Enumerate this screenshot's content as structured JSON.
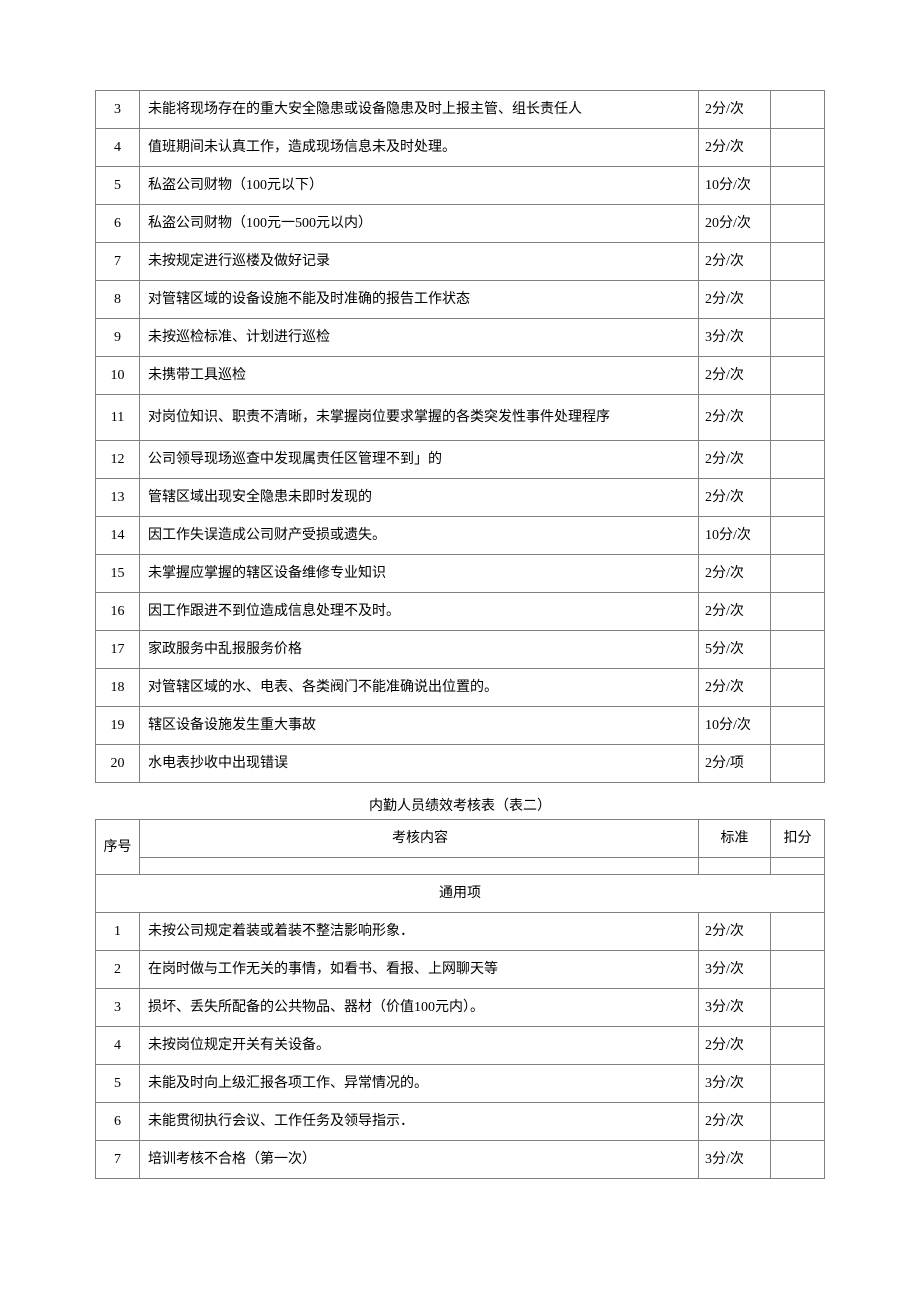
{
  "table1": {
    "rows": [
      {
        "num": "3",
        "content": "未能将现场存在的重大安全隐患或设备隐患及时上报主管、组长责任人",
        "std": "2分/次"
      },
      {
        "num": "4",
        "content": "值班期间未认真工作，造成现场信息未及时处理。",
        "std": "2分/次"
      },
      {
        "num": "5",
        "content": "私盗公司财物（100元以下）",
        "std": "10分/次"
      },
      {
        "num": "6",
        "content": "私盗公司财物（100元一500元以内）",
        "std": "20分/次"
      },
      {
        "num": "7",
        "content": "未按规定进行巡楼及做好记录",
        "std": "2分/次"
      },
      {
        "num": "8",
        "content": "对管辖区域的设备设施不能及时准确的报告工作状态",
        "std": "2分/次"
      },
      {
        "num": "9",
        "content": "未按巡检标准、计划进行巡检",
        "std": "3分/次"
      },
      {
        "num": "10",
        "content": "未携带工具巡检",
        "std": "2分/次"
      },
      {
        "num": "11",
        "content": "对岗位知识、职责不清晰，未掌握岗位要求掌握的各类突发性事件处理程序",
        "std": "2分/次"
      },
      {
        "num": "12",
        "content": "公司领导现场巡查中发现属责任区管理不到」的",
        "std": "2分/次"
      },
      {
        "num": "13",
        "content": "管辖区域出现安全隐患未即时发现的",
        "std": "2分/次"
      },
      {
        "num": "14",
        "content": "因工作失误造成公司财产受损或遗失。",
        "std": "10分/次"
      },
      {
        "num": "15",
        "content": "未掌握应掌握的辖区设备维修专业知识",
        "std": "2分/次"
      },
      {
        "num": "16",
        "content": "因工作跟进不到位造成信息处理不及时。",
        "std": "2分/次"
      },
      {
        "num": "17",
        "content": "家政服务中乱报服务价格",
        "std": "5分/次"
      },
      {
        "num": "18",
        "content": "对管辖区域的水、电表、各类阀门不能准确说出位置的。",
        "std": "2分/次"
      },
      {
        "num": "19",
        "content": "辖区设备设施发生重大事故",
        "std": "10分/次"
      },
      {
        "num": "20",
        "content": "水电表抄收中出现错误",
        "std": "2分/项"
      }
    ]
  },
  "table2": {
    "title": "内勤人员绩效考核表（表二）",
    "headers": {
      "num": "序号",
      "content": "考核内容",
      "std": "标准",
      "deduct": "扣分"
    },
    "section": "通用项",
    "rows": [
      {
        "num": "1",
        "content": "未按公司规定着装或着装不整洁影响形象．",
        "std": "2分/次"
      },
      {
        "num": "2",
        "content": "在岗时做与工作无关的事情，如看书、看报、上网聊天等",
        "std": "3分/次"
      },
      {
        "num": "3",
        "content": "损坏、丢失所配备的公共物品、器材（价值100元内）。",
        "std": "3分/次"
      },
      {
        "num": "4",
        "content": "未按岗位规定开关有关设备。",
        "std": "2分/次"
      },
      {
        "num": "5",
        "content": "未能及时向上级汇报各项工作、异常情况的。",
        "std": "3分/次"
      },
      {
        "num": "6",
        "content": "未能贯彻执行会议、工作任务及领导指示．",
        "std": "2分/次"
      },
      {
        "num": "7",
        "content": "培训考核不合格（第一次）",
        "std": "3分/次"
      }
    ]
  }
}
